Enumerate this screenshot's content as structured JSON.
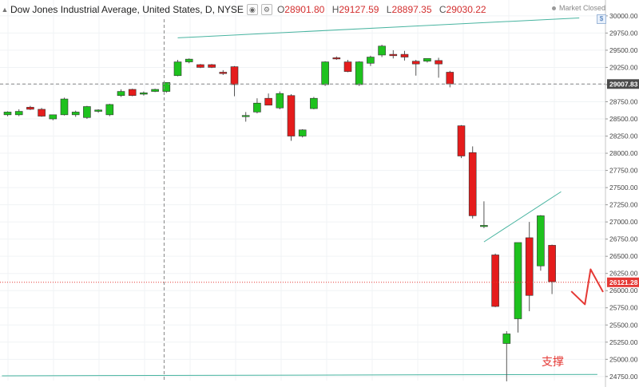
{
  "header": {
    "symbol": "Dow Jones Industrial Average, United States, D, NYSE",
    "separator": "·",
    "open_label": "O",
    "open": "28901.80",
    "high_label": "H",
    "high": "29127.59",
    "low_label": "L",
    "low": "28897.35",
    "close_label": "C",
    "close": "29030.22",
    "collapse_icon": "chevron-up",
    "eye_icon": "eye",
    "settings_icon": "gear"
  },
  "status": {
    "text": "Market Closed",
    "dot_color": "#9e9e9e"
  },
  "axis_button_label": "$",
  "annotation_text": "支撑",
  "colors": {
    "up": "#1ec21e",
    "down": "#e51c1c",
    "wick": "#555555",
    "trendline": "#48b4a0",
    "crosshair": "#888888",
    "last_price": "#e53935",
    "hand_drawn": "#e53935",
    "grid": "#f0f3f5",
    "axis_text": "#444444"
  },
  "chart_data": {
    "type": "candlestick",
    "ylim": [
      24690,
      30080
    ],
    "y_ticks": [
      30000,
      29750,
      29500,
      29250,
      29000,
      28750,
      28500,
      28250,
      28000,
      27750,
      27500,
      27250,
      27000,
      26750,
      26500,
      26250,
      26000,
      25750,
      25500,
      25250,
      25000,
      24750
    ],
    "y_tick_labels": [
      "30000.00",
      "29750.00",
      "29500.00",
      "29250.00",
      "29000.00",
      "28750.00",
      "28500.00",
      "28250.00",
      "28000.00",
      "27750.00",
      "27500.00",
      "27250.00",
      "27000.00",
      "26750.00",
      "26500.00",
      "26250.00",
      "26000.00",
      "25750.00",
      "25500.00",
      "25250.00",
      "25000.00",
      "24750.00"
    ],
    "crosshair_price": 29007.83,
    "crosshair_price_label": "29007.83",
    "last_price": 26121.28,
    "last_price_label": "26121.28",
    "candles": [
      {
        "o": 28560,
        "h": 28610,
        "l": 28540,
        "c": 28600
      },
      {
        "o": 28560,
        "h": 28640,
        "l": 28540,
        "c": 28610
      },
      {
        "o": 28670,
        "h": 28690,
        "l": 28630,
        "c": 28640
      },
      {
        "o": 28640,
        "h": 28660,
        "l": 28530,
        "c": 28540
      },
      {
        "o": 28500,
        "h": 28560,
        "l": 28480,
        "c": 28560
      },
      {
        "o": 28560,
        "h": 28810,
        "l": 28550,
        "c": 28790
      },
      {
        "o": 28560,
        "h": 28620,
        "l": 28530,
        "c": 28600
      },
      {
        "o": 28520,
        "h": 28690,
        "l": 28500,
        "c": 28680
      },
      {
        "o": 28610,
        "h": 28640,
        "l": 28590,
        "c": 28630
      },
      {
        "o": 28560,
        "h": 28720,
        "l": 28540,
        "c": 28710
      },
      {
        "o": 28840,
        "h": 28930,
        "l": 28820,
        "c": 28900
      },
      {
        "o": 28930,
        "h": 28940,
        "l": 28830,
        "c": 28840
      },
      {
        "o": 28860,
        "h": 28900,
        "l": 28840,
        "c": 28880
      },
      {
        "o": 28900,
        "h": 28940,
        "l": 28890,
        "c": 28930
      },
      {
        "o": 28900,
        "h": 29030,
        "l": 28880,
        "c": 29030
      },
      {
        "o": 29130,
        "h": 29360,
        "l": 29120,
        "c": 29330
      },
      {
        "o": 29330,
        "h": 29380,
        "l": 29310,
        "c": 29370
      },
      {
        "o": 29290,
        "h": 29300,
        "l": 29240,
        "c": 29250
      },
      {
        "o": 29290,
        "h": 29300,
        "l": 29240,
        "c": 29250
      },
      {
        "o": 29180,
        "h": 29210,
        "l": 29140,
        "c": 29160
      },
      {
        "o": 29260,
        "h": 29270,
        "l": 28830,
        "c": 29000
      },
      {
        "o": 28550,
        "h": 28600,
        "l": 28460,
        "c": 28550
      },
      {
        "o": 28600,
        "h": 28800,
        "l": 28580,
        "c": 28730
      },
      {
        "o": 28800,
        "h": 28870,
        "l": 28750,
        "c": 28700
      },
      {
        "o": 28660,
        "h": 28900,
        "l": 28640,
        "c": 28870
      },
      {
        "o": 28840,
        "h": 28860,
        "l": 28180,
        "c": 28250
      },
      {
        "o": 28250,
        "h": 28350,
        "l": 28230,
        "c": 28340
      },
      {
        "o": 28650,
        "h": 28820,
        "l": 28640,
        "c": 28800
      },
      {
        "o": 29000,
        "h": 29340,
        "l": 28980,
        "c": 29330
      },
      {
        "o": 29390,
        "h": 29410,
        "l": 29360,
        "c": 29380
      },
      {
        "o": 29330,
        "h": 29360,
        "l": 29180,
        "c": 29190
      },
      {
        "o": 29000,
        "h": 29340,
        "l": 28980,
        "c": 29330
      },
      {
        "o": 29310,
        "h": 29420,
        "l": 29270,
        "c": 29400
      },
      {
        "o": 29430,
        "h": 29580,
        "l": 29400,
        "c": 29560
      },
      {
        "o": 29440,
        "h": 29500,
        "l": 29380,
        "c": 29420
      },
      {
        "o": 29440,
        "h": 29490,
        "l": 29350,
        "c": 29400
      },
      {
        "o": 29340,
        "h": 29360,
        "l": 29130,
        "c": 29300
      },
      {
        "o": 29340,
        "h": 29380,
        "l": 29320,
        "c": 29380
      },
      {
        "o": 29350,
        "h": 29390,
        "l": 29100,
        "c": 29300
      },
      {
        "o": 29180,
        "h": 29200,
        "l": 28960,
        "c": 29010
      },
      {
        "o": 28400,
        "h": 28410,
        "l": 27930,
        "c": 27960
      },
      {
        "o": 28010,
        "h": 28100,
        "l": 27050,
        "c": 27090
      },
      {
        "o": 26950,
        "h": 27300,
        "l": 26910,
        "c": 26950
      },
      {
        "o": 26520,
        "h": 26540,
        "l": 25760,
        "c": 25770
      },
      {
        "o": 25230,
        "h": 25410,
        "l": 24680,
        "c": 25370
      },
      {
        "o": 25590,
        "h": 26700,
        "l": 25390,
        "c": 26700
      },
      {
        "o": 26770,
        "h": 27000,
        "l": 25700,
        "c": 25930
      },
      {
        "o": 26360,
        "h": 27100,
        "l": 26290,
        "c": 27090
      },
      {
        "o": 26660,
        "h": 26670,
        "l": 25950,
        "c": 26130
      }
    ],
    "trendlines": [
      {
        "from": {
          "bar": 15,
          "price": 29680
        },
        "to": {
          "bar": 50.4,
          "price": 29970
        }
      },
      {
        "from": {
          "bar": 42,
          "price": 26710
        },
        "to": {
          "bar": 48.8,
          "price": 27440
        }
      },
      {
        "from": {
          "bar": -0.5,
          "price": 24760
        },
        "to": {
          "bar": 52,
          "price": 24780
        }
      }
    ],
    "crosshair_bar": 13.8,
    "hand_drawn_line": [
      {
        "bar": 49.7,
        "price": 25990
      },
      {
        "bar": 50.9,
        "price": 25800
      },
      {
        "bar": 51.4,
        "price": 26310
      },
      {
        "bar": 52.5,
        "price": 25980
      }
    ],
    "annotation_position": "bottom-right"
  }
}
